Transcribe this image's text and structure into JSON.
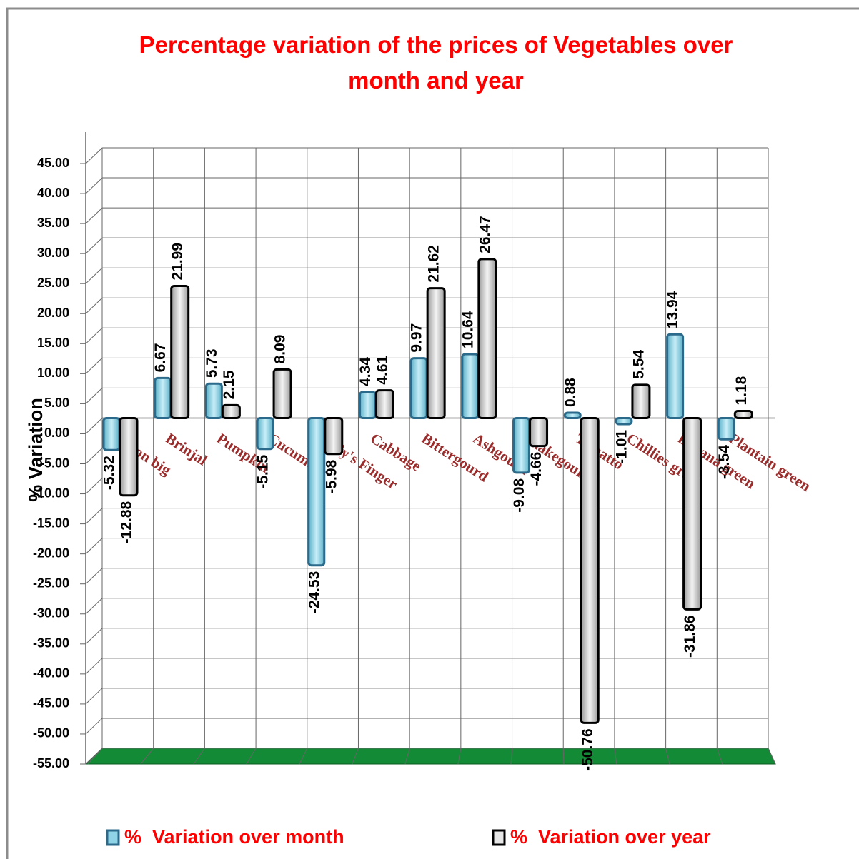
{
  "chart_data": {
    "type": "bar",
    "title": "Percentage variation of the prices of Vegetables over month and year",
    "y_label": "% Variation",
    "categories": [
      "Onion big",
      "Brinjal",
      "Pumpkin",
      "Cucumber",
      "Lady's Finger",
      "Cabbage",
      "Bittergourd",
      "Ashgourd",
      "Snakegourd",
      "Tomatto",
      "Chillies green",
      "Banana green",
      "Plantain green"
    ],
    "series": [
      {
        "name": "%  Variation over month",
        "color": "#8fd3e6",
        "values": [
          -5.32,
          6.67,
          5.73,
          -5.15,
          -24.53,
          4.34,
          9.97,
          10.64,
          -9.08,
          0.88,
          -1.01,
          13.94,
          -3.54
        ]
      },
      {
        "name": "%  Variation over year",
        "color": "#e6e6e6",
        "values": [
          -12.88,
          21.99,
          2.15,
          8.09,
          -5.98,
          4.61,
          21.62,
          26.47,
          -4.66,
          -50.76,
          5.54,
          -31.86,
          1.18
        ]
      }
    ],
    "ylim": [
      -55,
      45
    ],
    "yticks": [
      {
        "value": 45,
        "label": "45.00"
      },
      {
        "value": 40,
        "label": "40.00"
      },
      {
        "value": 35,
        "label": "35.00"
      },
      {
        "value": 30,
        "label": "30.00"
      },
      {
        "value": 25,
        "label": "25.00"
      },
      {
        "value": 20,
        "label": "20.00"
      },
      {
        "value": 15,
        "label": "15.00"
      },
      {
        "value": 10,
        "label": "10.00"
      },
      {
        "value": 5,
        "label": "5.00"
      },
      {
        "value": 0,
        "label": "0.00"
      },
      {
        "value": -5,
        "label": "-5.00"
      },
      {
        "value": -10,
        "label": "-10.00"
      },
      {
        "value": -15,
        "label": "-15.00"
      },
      {
        "value": -20,
        "label": "-20.00"
      },
      {
        "value": -25,
        "label": "-25.00"
      },
      {
        "value": -30,
        "label": "-30.00"
      },
      {
        "value": -35,
        "label": "-35.00"
      },
      {
        "value": -40,
        "label": "-40.00"
      },
      {
        "value": -45,
        "label": "-45.00"
      },
      {
        "value": -50,
        "label": "-50.00"
      },
      {
        "value": -55,
        "label": "-55.00"
      }
    ],
    "grid": true,
    "legend": "bottom"
  }
}
